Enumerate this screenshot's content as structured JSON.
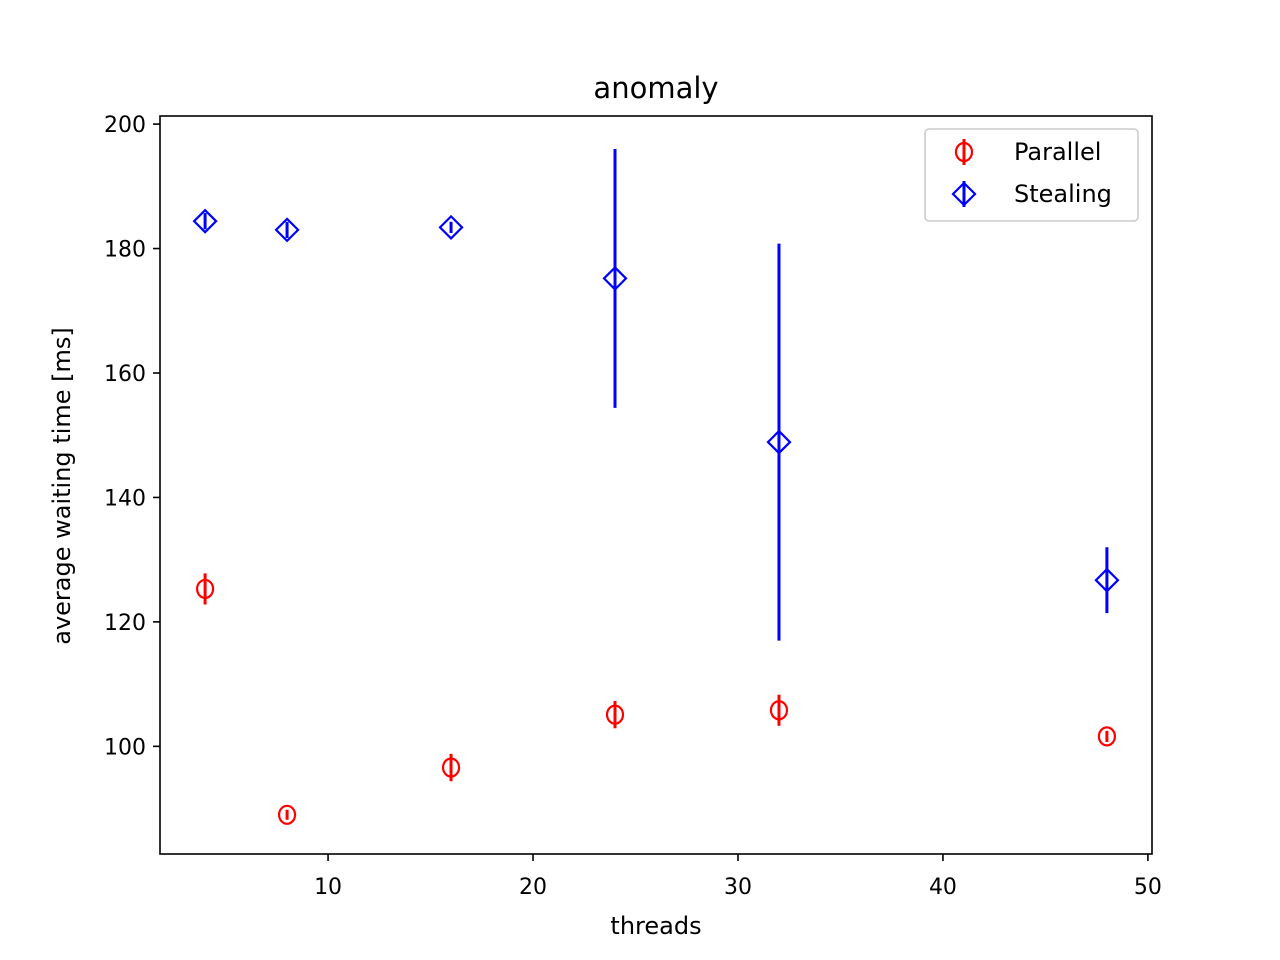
{
  "chart_data": {
    "type": "scatter",
    "title": "anomaly",
    "xlabel": "threads",
    "ylabel": "average waiting time [ms]",
    "xlim": [
      1.8,
      50.2
    ],
    "ylim": [
      82.7,
      201.3
    ],
    "xticks": [
      10,
      20,
      30,
      40,
      50
    ],
    "yticks": [
      100,
      120,
      140,
      160,
      180,
      200
    ],
    "grid": false,
    "legend_position": "top-right",
    "series": [
      {
        "name": "Parallel",
        "color": "#ff0000",
        "marker": "circle",
        "x": [
          4,
          8,
          16,
          24,
          32,
          48
        ],
        "y": [
          125.3,
          89.0,
          96.6,
          105.1,
          105.8,
          101.6
        ],
        "error": [
          2.5,
          0.8,
          2.2,
          2.2,
          2.5,
          0.9
        ]
      },
      {
        "name": "Stealing",
        "color": "#0000ff",
        "marker": "diamond",
        "x": [
          4,
          8,
          16,
          24,
          32,
          48
        ],
        "y": [
          184.4,
          183.0,
          183.4,
          175.2,
          148.9,
          126.7
        ],
        "error": [
          1.3,
          1.3,
          0.9,
          20.8,
          31.9,
          5.3
        ]
      }
    ]
  }
}
